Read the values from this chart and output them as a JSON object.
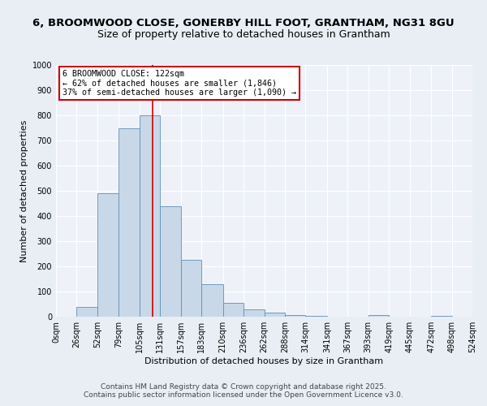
{
  "title_line1": "6, BROOMWOOD CLOSE, GONERBY HILL FOOT, GRANTHAM, NG31 8GU",
  "title_line2": "Size of property relative to detached houses in Grantham",
  "xlabel": "Distribution of detached houses by size in Grantham",
  "ylabel": "Number of detached properties",
  "bin_labels": [
    "0sqm",
    "26sqm",
    "52sqm",
    "79sqm",
    "105sqm",
    "131sqm",
    "157sqm",
    "183sqm",
    "210sqm",
    "236sqm",
    "262sqm",
    "288sqm",
    "314sqm",
    "341sqm",
    "367sqm",
    "393sqm",
    "419sqm",
    "445sqm",
    "472sqm",
    "498sqm",
    "524sqm"
  ],
  "bin_edges": [
    0,
    26,
    52,
    79,
    105,
    131,
    157,
    183,
    210,
    236,
    262,
    288,
    314,
    341,
    367,
    393,
    419,
    445,
    472,
    498,
    524
  ],
  "bar_heights": [
    0,
    40,
    490,
    750,
    800,
    440,
    225,
    130,
    55,
    30,
    15,
    8,
    3,
    0,
    0,
    5,
    0,
    0,
    3,
    0,
    0
  ],
  "bar_color": "#c8d8e8",
  "bar_edge_color": "#6090b8",
  "property_size": 122,
  "property_label": "6 BROOMWOOD CLOSE: 122sqm",
  "annotation_line2": "← 62% of detached houses are smaller (1,846)",
  "annotation_line3": "37% of semi-detached houses are larger (1,090) →",
  "vline_color": "#cc0000",
  "annotation_box_color": "#cc0000",
  "annotation_text_color": "#000000",
  "ylim": [
    0,
    1000
  ],
  "ytick_step": 100,
  "bg_color": "#e8eef4",
  "plot_bg_color": "#eef2f8",
  "grid_color": "#ffffff",
  "footer_line1": "Contains HM Land Registry data © Crown copyright and database right 2025.",
  "footer_line2": "Contains public sector information licensed under the Open Government Licence v3.0.",
  "title_fontsize": 9.5,
  "subtitle_fontsize": 9,
  "axis_label_fontsize": 8,
  "tick_fontsize": 7,
  "footer_fontsize": 6.5
}
